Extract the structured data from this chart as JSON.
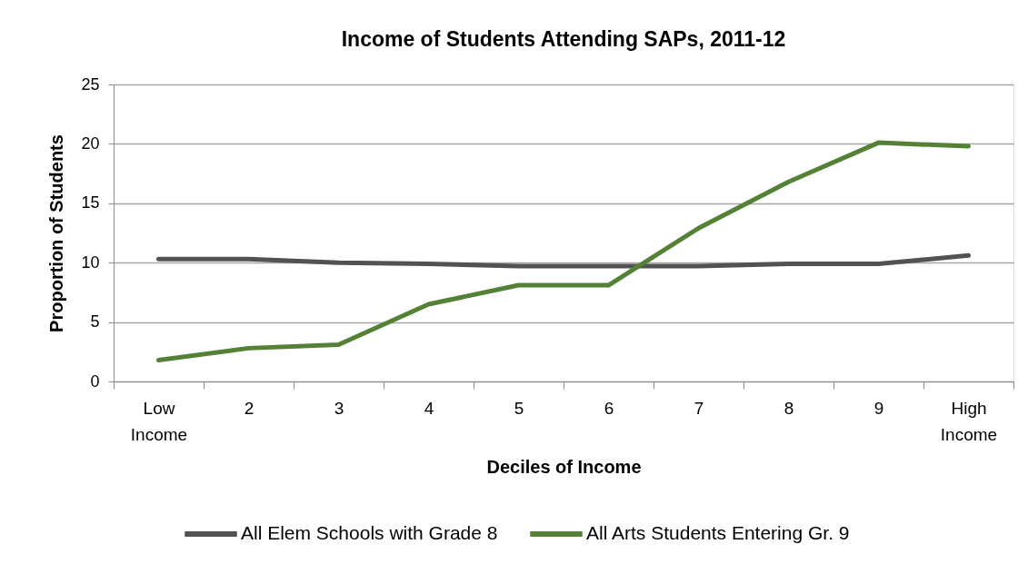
{
  "chart_data": {
    "type": "line",
    "title": "Income of Students Attending SAPs, 2011-12",
    "xlabel": "Deciles of Income",
    "ylabel": "Proportion of Students",
    "categories": [
      "Low Income",
      "2",
      "3",
      "4",
      "5",
      "6",
      "7",
      "8",
      "9",
      "High Income"
    ],
    "series": [
      {
        "name": "All Elem Schools with Grade 8",
        "color": "#525252",
        "values": [
          10.3,
          10.3,
          10.0,
          9.9,
          9.7,
          9.7,
          9.7,
          9.9,
          9.9,
          10.6
        ]
      },
      {
        "name": "All Arts Students Entering Gr. 9",
        "color": "#538135",
        "values": [
          1.8,
          2.8,
          3.1,
          6.5,
          8.1,
          8.1,
          12.9,
          16.8,
          20.1,
          19.8
        ]
      }
    ],
    "ylim": [
      0,
      25
    ],
    "yticks": [
      0,
      5,
      10,
      15,
      20,
      25
    ],
    "grid": "y",
    "legend": "bottom",
    "marker": "none",
    "line_style": "solid"
  }
}
